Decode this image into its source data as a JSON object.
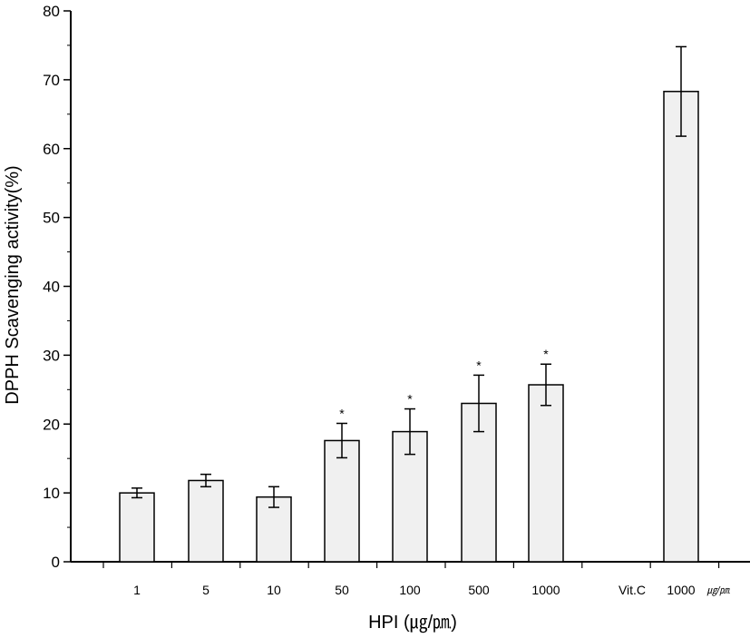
{
  "chart_data": {
    "type": "bar",
    "xlabel": "HPI (㎍/㏘)",
    "ylabel": "DPPH Scavenging activity(%)",
    "ylim": [
      0,
      80
    ],
    "yticks": [
      0,
      10,
      20,
      30,
      40,
      50,
      60,
      70,
      80
    ],
    "grid": false,
    "categories": [
      "1",
      "5",
      "10",
      "50",
      "100",
      "500",
      "1000",
      "Vit.C 1000"
    ],
    "category_labels": [
      "1",
      "5",
      "10",
      "50",
      "100",
      "500",
      "1000",
      "1000"
    ],
    "values": [
      10.0,
      11.8,
      9.4,
      17.6,
      18.9,
      23.0,
      25.7,
      68.3
    ],
    "errors": [
      0.7,
      0.9,
      1.5,
      2.5,
      3.3,
      4.1,
      3.0,
      6.5
    ],
    "significance": [
      "",
      "",
      "",
      "*",
      "*",
      "*",
      "*",
      ""
    ],
    "extra_labels": {
      "vitc": "Vit.C",
      "unit": "㎍/㏘"
    },
    "bar_color": "#f0f0f0",
    "edge_color": "#000000"
  }
}
